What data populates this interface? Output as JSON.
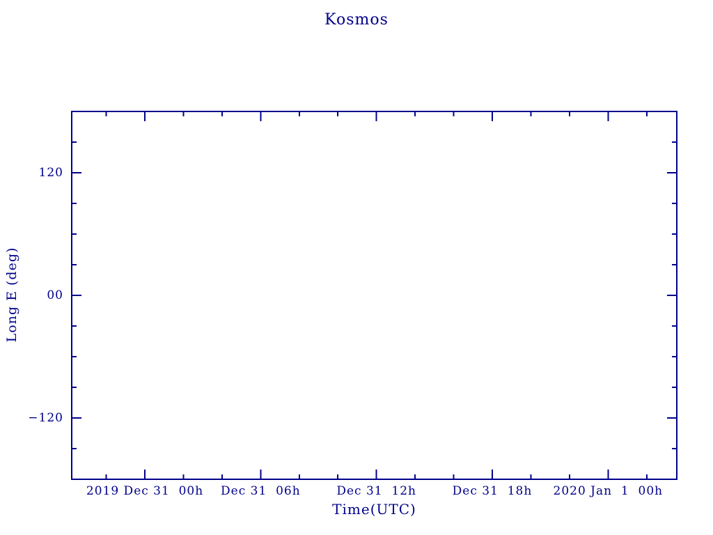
{
  "page": {
    "background": "#ffffff",
    "accent_color": "#00008b"
  },
  "chart_data": {
    "type": "line",
    "title": "Kosmos",
    "xlabel": "Time(UTC)",
    "ylabel": "Long E (deg)",
    "grid": false,
    "legend": null,
    "series": [],
    "note": "plot area is empty - no data points or lines are drawn",
    "x_axis": {
      "unit": "hours relative to 2019 Dec 31 00h UTC",
      "range": [
        -3.79,
        27.56
      ],
      "minor_tick_step": 2,
      "major_ticks": [
        {
          "value": 0,
          "label": "2019 Dec 31  00h"
        },
        {
          "value": 6,
          "label": "Dec 31  06h"
        },
        {
          "value": 12,
          "label": "Dec 31  12h"
        },
        {
          "value": 18,
          "label": "Dec 31  18h"
        },
        {
          "value": 24,
          "label": "2020 Jan  1  00h"
        }
      ]
    },
    "y_axis": {
      "unit": "deg",
      "range": [
        -180,
        180
      ],
      "minor_tick_step": 30,
      "major_ticks": [
        {
          "value": 120,
          "label": "120"
        },
        {
          "value": 0,
          "label": "00"
        },
        {
          "value": -120,
          "label": "−120"
        }
      ]
    }
  }
}
